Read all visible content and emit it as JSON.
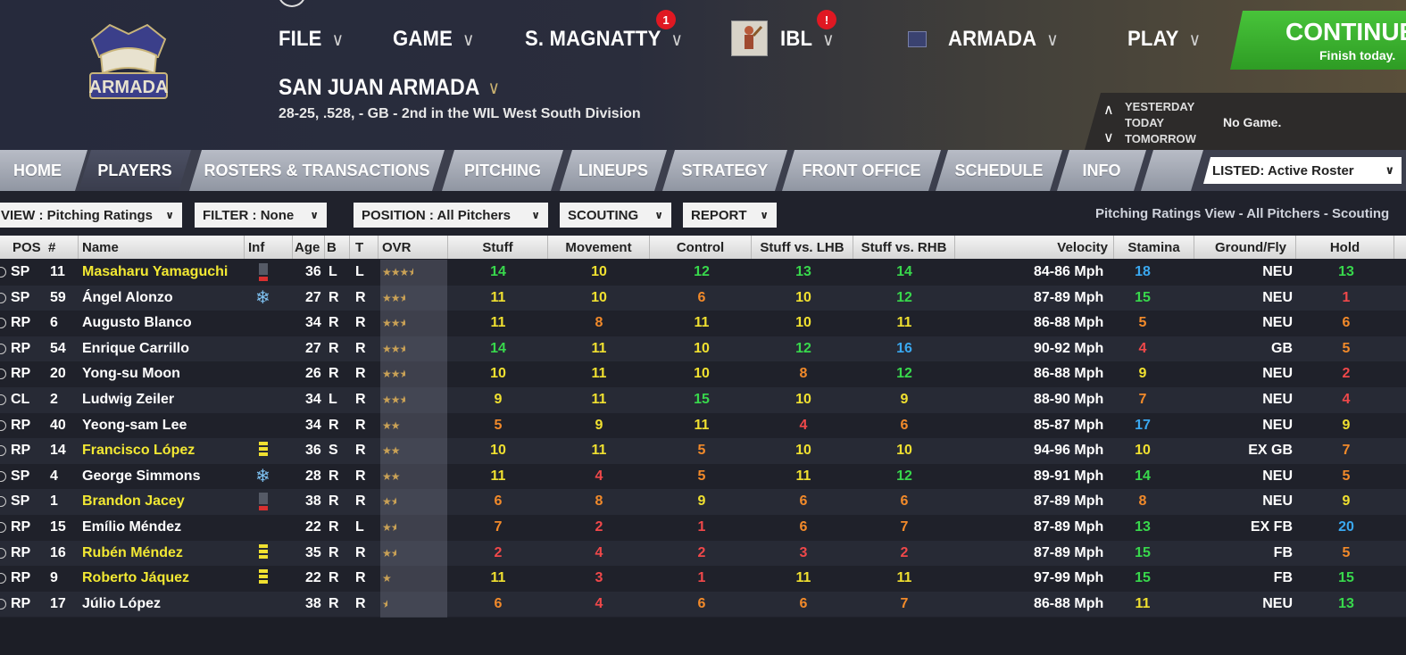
{
  "header": {
    "menu": [
      {
        "label": "FILE",
        "badge": ""
      },
      {
        "label": "GAME",
        "badge": ""
      },
      {
        "label": "S. MAGNATTY",
        "badge": "1"
      },
      {
        "label": "IBL",
        "badge": "!"
      },
      {
        "label": "ARMADA",
        "badge": ""
      },
      {
        "label": "PLAY",
        "badge": ""
      }
    ],
    "logo_text": "ARMADA",
    "team_name": "SAN JUAN ARMADA",
    "team_record": "28-25, .528, - GB - 2nd in the WIL West South Division",
    "continue_label": "CONTINUE",
    "continue_sub": "Finish today.",
    "day_nav": {
      "yesterday": "YESTERDAY",
      "today": "TODAY",
      "tomorrow": "TOMORROW",
      "status": "No Game."
    }
  },
  "tabs": [
    "HOME",
    "PLAYERS",
    "ROSTERS & TRANSACTIONS",
    "PITCHING",
    "LINEUPS",
    "STRATEGY",
    "FRONT OFFICE",
    "SCHEDULE",
    "INFO"
  ],
  "active_tab": "PLAYERS",
  "listed": "LISTED: Active Roster",
  "toolbar": {
    "view": "VIEW : Pitching Ratings",
    "filter": "FILTER : None",
    "position": "POSITION : All Pitchers",
    "scouting": "SCOUTING",
    "report": "REPORT",
    "caption": "Pitching Ratings View - All Pitchers - Scouting"
  },
  "columns": [
    "POS",
    "#",
    "Name",
    "Inf",
    "Age",
    "B",
    "T",
    "OVR",
    "Stuff",
    "Movement",
    "Control",
    "Stuff vs. LHB",
    "Stuff vs. RHB",
    "Velocity",
    "Stamina",
    "Ground/Fly",
    "Hold"
  ],
  "colors": {
    "accent_green": "#2e9c24",
    "name_highlight": "#f2e833",
    "tab_active": "#3a3d4d"
  },
  "players": [
    {
      "pos": "SP",
      "num": "11",
      "name": "Masaharu Yamaguchi",
      "hl": true,
      "inf": "injury",
      "age": "36",
      "b": "L",
      "t": "L",
      "stars": 3.5,
      "stuff": 14,
      "movement": 10,
      "control": 12,
      "lhb": 13,
      "rhb": 14,
      "velocity": "84-86 Mph",
      "stamina": 18,
      "gf": "NEU",
      "hold": 13
    },
    {
      "pos": "SP",
      "num": "59",
      "name": "Ángel Alonzo",
      "hl": false,
      "inf": "cold",
      "age": "27",
      "b": "R",
      "t": "R",
      "stars": 2.5,
      "stuff": 11,
      "movement": 10,
      "control": 6,
      "lhb": 10,
      "rhb": 12,
      "velocity": "87-89 Mph",
      "stamina": 15,
      "gf": "NEU",
      "hold": 1
    },
    {
      "pos": "RP",
      "num": "6",
      "name": "Augusto Blanco",
      "hl": false,
      "inf": "",
      "age": "34",
      "b": "R",
      "t": "R",
      "stars": 2.5,
      "stuff": 11,
      "movement": 8,
      "control": 11,
      "lhb": 10,
      "rhb": 11,
      "velocity": "86-88 Mph",
      "stamina": 5,
      "gf": "NEU",
      "hold": 6
    },
    {
      "pos": "RP",
      "num": "54",
      "name": "Enrique Carrillo",
      "hl": false,
      "inf": "",
      "age": "27",
      "b": "R",
      "t": "R",
      "stars": 2.5,
      "stuff": 14,
      "movement": 11,
      "control": 10,
      "lhb": 12,
      "rhb": 16,
      "velocity": "90-92 Mph",
      "stamina": 4,
      "gf": "GB",
      "hold": 5
    },
    {
      "pos": "RP",
      "num": "20",
      "name": "Yong-su Moon",
      "hl": false,
      "inf": "",
      "age": "26",
      "b": "R",
      "t": "R",
      "stars": 2.5,
      "stuff": 10,
      "movement": 11,
      "control": 10,
      "lhb": 8,
      "rhb": 12,
      "velocity": "86-88 Mph",
      "stamina": 9,
      "gf": "NEU",
      "hold": 2
    },
    {
      "pos": "CL",
      "num": "2",
      "name": "Ludwig Zeiler",
      "hl": false,
      "inf": "",
      "age": "34",
      "b": "L",
      "t": "R",
      "stars": 2.5,
      "stuff": 9,
      "movement": 11,
      "control": 15,
      "lhb": 10,
      "rhb": 9,
      "velocity": "88-90 Mph",
      "stamina": 7,
      "gf": "NEU",
      "hold": 4
    },
    {
      "pos": "RP",
      "num": "40",
      "name": "Yeong-sam Lee",
      "hl": false,
      "inf": "",
      "age": "34",
      "b": "R",
      "t": "R",
      "stars": 2,
      "stuff": 5,
      "movement": 9,
      "control": 11,
      "lhb": 4,
      "rhb": 6,
      "velocity": "85-87 Mph",
      "stamina": 17,
      "gf": "NEU",
      "hold": 9
    },
    {
      "pos": "RP",
      "num": "14",
      "name": "Francisco López",
      "hl": true,
      "inf": "minor",
      "age": "36",
      "b": "S",
      "t": "R",
      "stars": 2,
      "stuff": 10,
      "movement": 11,
      "control": 5,
      "lhb": 10,
      "rhb": 10,
      "velocity": "94-96 Mph",
      "stamina": 10,
      "gf": "EX GB",
      "hold": 7
    },
    {
      "pos": "SP",
      "num": "4",
      "name": "George Simmons",
      "hl": false,
      "inf": "cold",
      "age": "28",
      "b": "R",
      "t": "R",
      "stars": 2,
      "stuff": 11,
      "movement": 4,
      "control": 5,
      "lhb": 11,
      "rhb": 12,
      "velocity": "89-91 Mph",
      "stamina": 14,
      "gf": "NEU",
      "hold": 5
    },
    {
      "pos": "SP",
      "num": "1",
      "name": "Brandon Jacey",
      "hl": true,
      "inf": "injury",
      "age": "38",
      "b": "R",
      "t": "R",
      "stars": 1.5,
      "stuff": 6,
      "movement": 8,
      "control": 9,
      "lhb": 6,
      "rhb": 6,
      "velocity": "87-89 Mph",
      "stamina": 8,
      "gf": "NEU",
      "hold": 9
    },
    {
      "pos": "RP",
      "num": "15",
      "name": "Emílio Méndez",
      "hl": false,
      "inf": "",
      "age": "22",
      "b": "R",
      "t": "L",
      "stars": 1.5,
      "stuff": 7,
      "movement": 2,
      "control": 1,
      "lhb": 6,
      "rhb": 7,
      "velocity": "87-89 Mph",
      "stamina": 13,
      "gf": "EX FB",
      "hold": 20
    },
    {
      "pos": "RP",
      "num": "16",
      "name": "Rubén Méndez",
      "hl": true,
      "inf": "minor",
      "age": "35",
      "b": "R",
      "t": "R",
      "stars": 1.5,
      "stuff": 2,
      "movement": 4,
      "control": 2,
      "lhb": 3,
      "rhb": 2,
      "velocity": "87-89 Mph",
      "stamina": 15,
      "gf": "FB",
      "hold": 5
    },
    {
      "pos": "RP",
      "num": "9",
      "name": "Roberto Jáquez",
      "hl": true,
      "inf": "minor",
      "age": "22",
      "b": "R",
      "t": "R",
      "stars": 1,
      "stuff": 11,
      "movement": 3,
      "control": 1,
      "lhb": 11,
      "rhb": 11,
      "velocity": "97-99 Mph",
      "stamina": 15,
      "gf": "FB",
      "hold": 15
    },
    {
      "pos": "RP",
      "num": "17",
      "name": "Júlio López",
      "hl": false,
      "inf": "",
      "age": "38",
      "b": "R",
      "t": "R",
      "stars": 0.5,
      "stuff": 6,
      "movement": 4,
      "control": 6,
      "lhb": 6,
      "rhb": 7,
      "velocity": "86-88 Mph",
      "stamina": 11,
      "gf": "NEU",
      "hold": 13
    }
  ]
}
